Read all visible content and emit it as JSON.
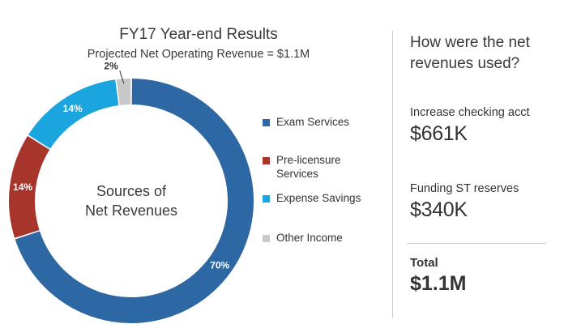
{
  "chart_data": {
    "type": "pie",
    "title": "FY17 Year-end Results",
    "subtitle": "Projected Net Operating Revenue = $1.1M",
    "center_label": [
      "Sources of",
      "Net Revenues"
    ],
    "categories": [
      "Exam Services",
      "Pre-licensure Services",
      "Expense Savings",
      "Other Income"
    ],
    "values": [
      70,
      14,
      14,
      2
    ],
    "value_labels": [
      "70%",
      "14%",
      "14%",
      "2%"
    ],
    "colors": [
      "#2e68a4",
      "#a8352c",
      "#1ba5de",
      "#c8c8c8"
    ],
    "legend_position": "right"
  },
  "legend": {
    "items": [
      {
        "label": "Exam Services",
        "color": "#2e68a4"
      },
      {
        "label": "Pre-licensure\nServices",
        "color": "#a8352c"
      },
      {
        "label": "Expense Savings",
        "color": "#1ba5de"
      },
      {
        "label": "Other Income",
        "color": "#c8c8c8"
      }
    ]
  },
  "side_panel": {
    "question": "How were the net revenues used?",
    "items": [
      {
        "label": "Increase checking acct",
        "value": "$661K"
      },
      {
        "label": "Funding ST reserves",
        "value": "$340K"
      }
    ],
    "total_label": "Total",
    "total_value": "$1.1M"
  }
}
